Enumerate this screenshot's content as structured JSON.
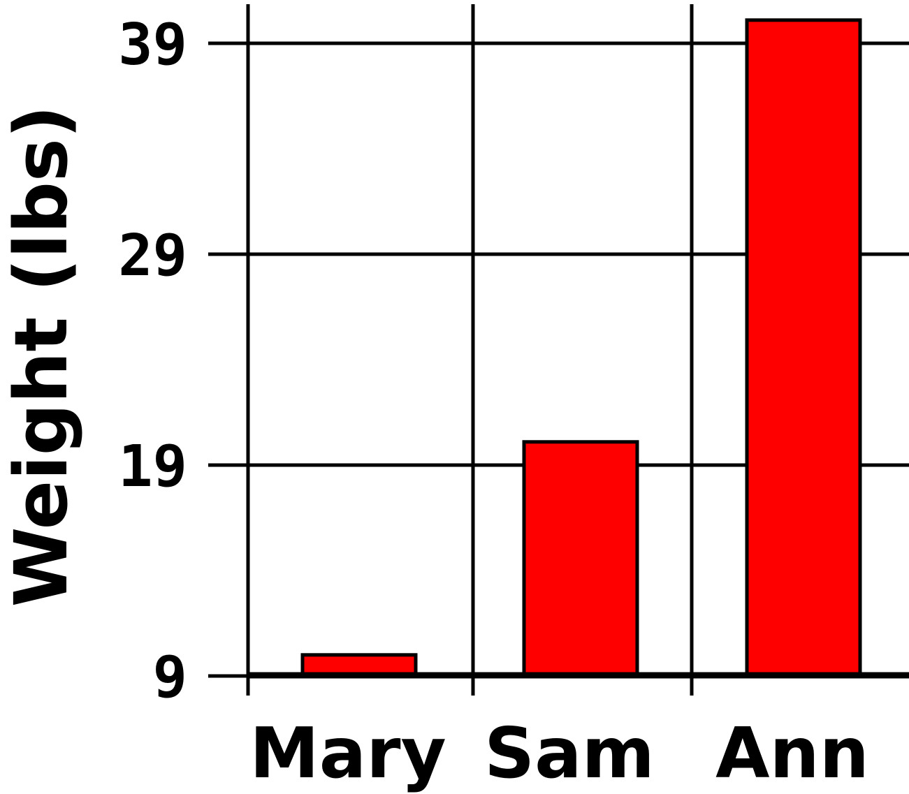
{
  "chart_data": {
    "type": "bar",
    "categories": [
      "Mary",
      "Sam",
      "Ann"
    ],
    "values": [
      10.0,
      20.1,
      40.1
    ],
    "ylabel": "Weight (lbs)",
    "xlabel": "",
    "yticks": [
      9,
      19,
      29,
      39
    ],
    "ylim": [
      9,
      40.1
    ],
    "grid": true,
    "bar_color": "#ff0000",
    "edge_color": "#000000"
  }
}
